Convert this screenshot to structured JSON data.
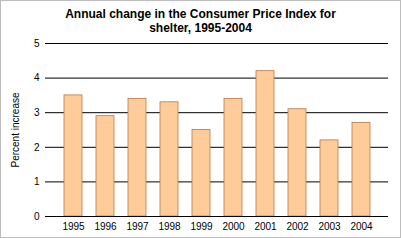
{
  "chart_data": {
    "type": "bar",
    "title": "Annual change in the Consumer Price Index for shelter, 1995-2004",
    "y_label": "Percent increase",
    "categories": [
      "1995",
      "1996",
      "1997",
      "1998",
      "1999",
      "2000",
      "2001",
      "2002",
      "2003",
      "2004"
    ],
    "values": [
      3.5,
      2.9,
      3.4,
      3.3,
      2.5,
      3.4,
      4.2,
      3.1,
      2.2,
      2.7
    ],
    "color": "#ffcc99",
    "ylim": [
      0,
      5
    ],
    "yticks": [
      0,
      1,
      2,
      3,
      4,
      5
    ],
    "grid": true
  }
}
